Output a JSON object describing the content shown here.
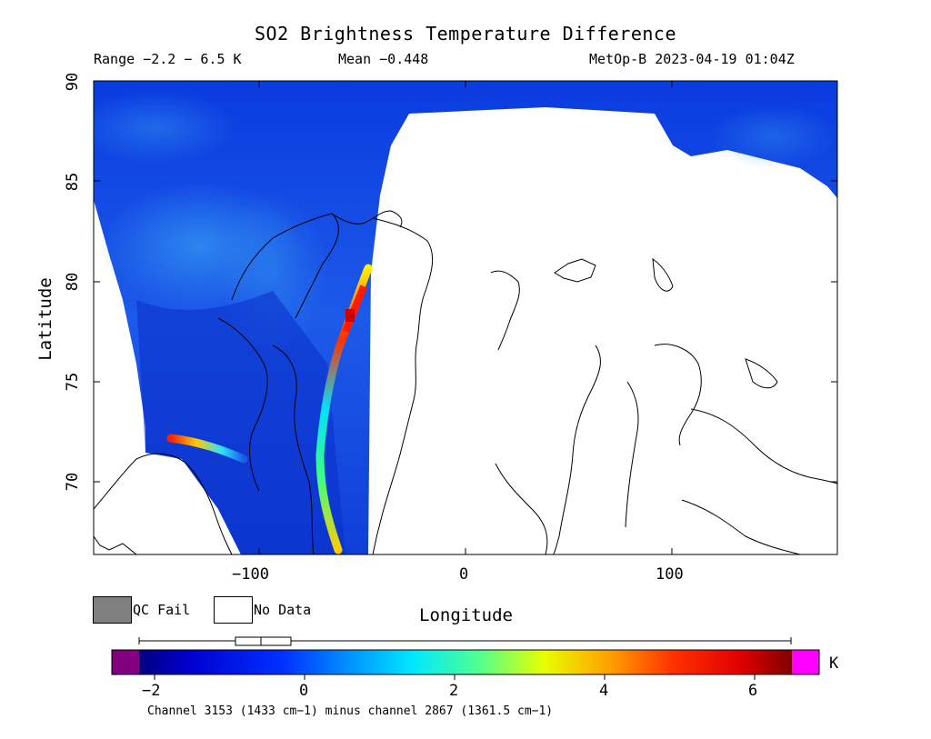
{
  "title": "SO2 Brightness Temperature Difference",
  "subtitle": {
    "range": "Range −2.2 − 6.5 K",
    "mean": "Mean −0.448",
    "satellite": "MetOp-B 2023-04-19 01:04Z"
  },
  "axes": {
    "ylabel": "Latitude",
    "xlabel": "Longitude",
    "lat_ticks": [
      "90",
      "85",
      "80",
      "75",
      "70"
    ],
    "lon_ticks": [
      "−100",
      "0",
      "100"
    ]
  },
  "legend": {
    "qc_fail": "QC Fail",
    "no_data": "No Data",
    "qc_fail_color": "#808080",
    "no_data_color": "#ffffff"
  },
  "colorbar": {
    "unit": "K",
    "ticks": [
      "−2",
      "0",
      "2",
      "4",
      "6"
    ],
    "range": [
      -2.2,
      6.5
    ],
    "under_color": "#800080",
    "over_color": "#ff00ff"
  },
  "footer": "Channel 3153 (1433 cm−1) minus channel 2867 (1361.5 cm−1)",
  "map_data": {
    "projection": "cylindrical",
    "lon_range": [
      -180,
      180
    ],
    "lat_range": [
      66.5,
      90
    ],
    "background_color": "#1a4fe0",
    "plume_color": "#ff2a00"
  }
}
